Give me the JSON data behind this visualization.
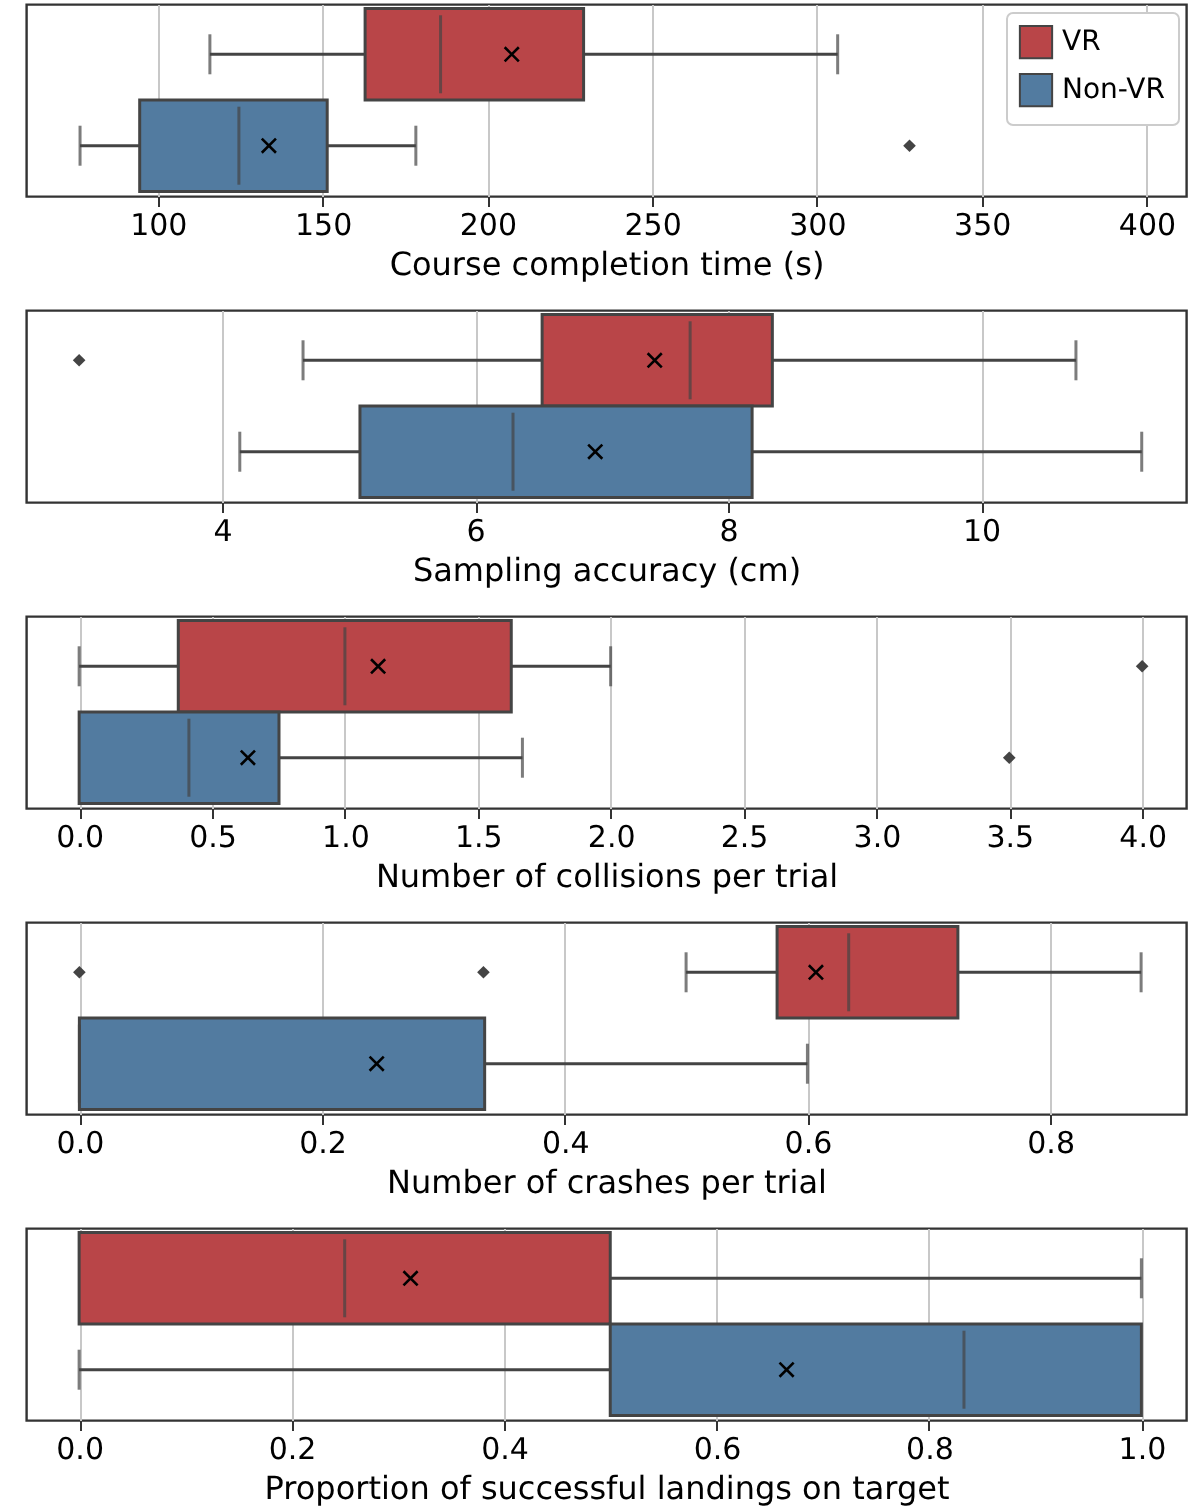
{
  "chart_data": [
    {
      "type": "box",
      "orientation": "horizontal",
      "xlabel": "Course completion time (s)",
      "categories": [
        null
      ],
      "xlim": [
        60,
        412
      ],
      "xticks": [
        100,
        150,
        200,
        250,
        300,
        350,
        400
      ],
      "grid": "x",
      "legend": "top right",
      "series": [
        {
          "name": "VR",
          "color": "#b94548",
          "boxes": [
            {
              "low": 115.8,
              "q1": 162.9,
              "median": 185.8,
              "q3": 229.2,
              "high": 306.3,
              "mean": 207.4
            }
          ]
        },
        {
          "name": "Non-VR",
          "color": "#527ba0",
          "boxes": [
            {
              "low": 76.4,
              "q1": 94.5,
              "median": 124.6,
              "q3": 151.4,
              "high": 178.3,
              "mean": 133.7,
              "outliers": [
                328.1
              ]
            }
          ]
        }
      ]
    },
    {
      "type": "box",
      "orientation": "horizontal",
      "xlabel": "Sampling accuracy (cm)",
      "categories": [
        null
      ],
      "xlim": [
        2.45,
        11.62
      ],
      "xticks": [
        4,
        6,
        8,
        10
      ],
      "grid": "x",
      "series": [
        {
          "color": "#b94548",
          "boxes": [
            {
              "low": 4.64,
              "q1": 6.53,
              "median": 7.7,
              "q3": 8.35,
              "high": 10.75,
              "mean": 7.42,
              "outliers": [
                2.87
              ]
            }
          ]
        },
        {
          "color": "#527ba0",
          "boxes": [
            {
              "low": 4.14,
              "q1": 5.09,
              "median": 6.3,
              "q3": 8.19,
              "high": 11.27,
              "mean": 6.95
            }
          ]
        }
      ]
    },
    {
      "type": "box",
      "orientation": "horizontal",
      "xlabel": "Number of collisions per trial",
      "categories": [
        null
      ],
      "xlim": [
        -0.2,
        4.165
      ],
      "xticks": [
        {
          "value": 0,
          "label": "0.0"
        },
        0.5,
        {
          "value": 1,
          "label": "1.0"
        },
        1.5,
        {
          "value": 2,
          "label": "2.0"
        },
        2.5,
        {
          "value": 3,
          "label": "3.0"
        },
        3.5,
        {
          "value": 4,
          "label": "4.0"
        }
      ],
      "grid": "x",
      "series": [
        {
          "color": "#b94548",
          "boxes": [
            {
              "low": 0,
              "q1": 0.373,
              "median": 1.0,
              "q3": 1.626,
              "high": 2.0,
              "mean": 1.125,
              "outliers": [
                4.0
              ]
            }
          ]
        },
        {
          "color": "#527ba0",
          "boxes": [
            {
              "low": 0,
              "q1": 0,
              "median": 0.413,
              "q3": 0.752,
              "high": 1.668,
              "mean": 0.635,
              "outliers": [
                3.5
              ]
            }
          ]
        }
      ]
    },
    {
      "type": "box",
      "orientation": "horizontal",
      "xlabel": "Number of crashes per trial",
      "categories": [
        null
      ],
      "xlim": [
        -0.044,
        0.912
      ],
      "xticks": [
        {
          "value": 0,
          "label": "0.0"
        },
        0.2,
        0.4,
        0.6,
        0.8
      ],
      "grid": "x",
      "series": [
        {
          "color": "#b94548",
          "boxes": [
            {
              "low": 0.5,
              "q1": 0.575,
              "median": 0.634,
              "q3": 0.724,
              "high": 0.875,
              "mean": 0.607,
              "outliers": [
                0,
                0.333
              ]
            }
          ]
        },
        {
          "color": "#527ba0",
          "boxes": [
            {
              "low": 0,
              "q1": 0,
              "median": 0,
              "q3": 0.334,
              "high": 0.6,
              "mean": 0.245
            }
          ]
        }
      ]
    },
    {
      "type": "box",
      "orientation": "horizontal",
      "xlabel": "Proportion of successful landings on target",
      "categories": [
        null
      ],
      "xlim": [
        -0.05,
        1.042
      ],
      "xticks": [
        {
          "value": 0,
          "label": "0.0"
        },
        0.2,
        0.4,
        0.6,
        0.8,
        {
          "value": 1,
          "label": "1.0"
        }
      ],
      "grid": "x",
      "series": [
        {
          "color": "#b94548",
          "boxes": [
            {
              "low": 0,
              "q1": 0,
              "median": 0.25,
              "q3": 0.5,
              "high": 1.0,
              "mean": 0.312
            }
          ]
        },
        {
          "color": "#527ba0",
          "boxes": [
            {
              "low": 0,
              "q1": 0.5,
              "median": 0.833,
              "q3": 1.0,
              "high": 1.0,
              "mean": 0.666
            }
          ]
        }
      ]
    }
  ]
}
